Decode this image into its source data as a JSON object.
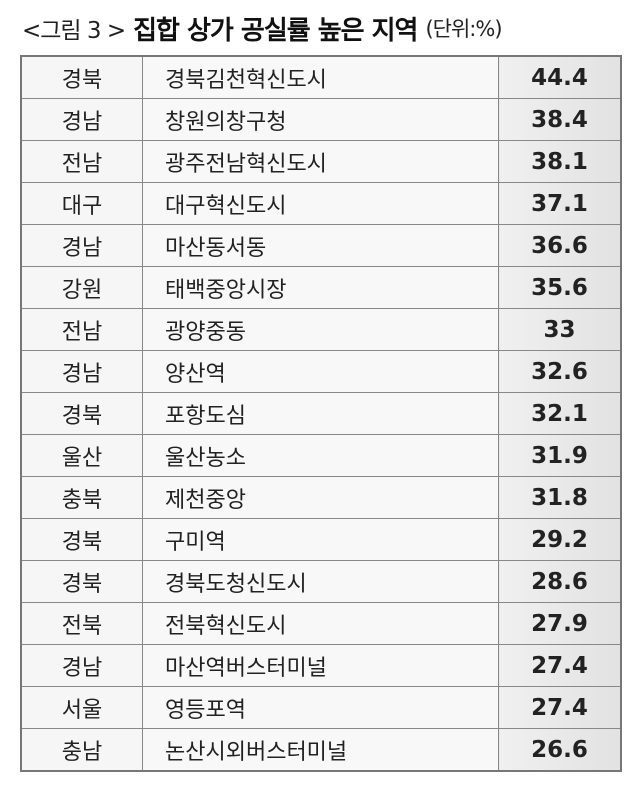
{
  "title": {
    "prefix": "<그림 3 >",
    "main": "집합 상가 공실률 높은 지역",
    "unit": "(단위:%)"
  },
  "rows": [
    {
      "province": "경북",
      "area": "경북김천혁신도시",
      "value": "44.4"
    },
    {
      "province": "경남",
      "area": "창원의창구청",
      "value": "38.4"
    },
    {
      "province": "전남",
      "area": "광주전남혁신도시",
      "value": "38.1"
    },
    {
      "province": "대구",
      "area": "대구혁신도시",
      "value": "37.1"
    },
    {
      "province": "경남",
      "area": "마산동서동",
      "value": "36.6"
    },
    {
      "province": "강원",
      "area": "태백중앙시장",
      "value": "35.6"
    },
    {
      "province": "전남",
      "area": "광양중동",
      "value": "33"
    },
    {
      "province": "경남",
      "area": "양산역",
      "value": "32.6"
    },
    {
      "province": "경북",
      "area": "포항도심",
      "value": "32.1"
    },
    {
      "province": "울산",
      "area": "울산농소",
      "value": "31.9"
    },
    {
      "province": "충북",
      "area": "제천중앙",
      "value": "31.8"
    },
    {
      "province": "경북",
      "area": "구미역",
      "value": "29.2"
    },
    {
      "province": "경북",
      "area": "경북도청신도시",
      "value": "28.6"
    },
    {
      "province": "전북",
      "area": "전북혁신도시",
      "value": "27.9"
    },
    {
      "province": "경남",
      "area": "마산역버스터미널",
      "value": "27.4"
    },
    {
      "province": "서울",
      "area": "영등포역",
      "value": "27.4"
    },
    {
      "province": "충남",
      "area": "논산시외버스터미널",
      "value": "26.6"
    }
  ]
}
